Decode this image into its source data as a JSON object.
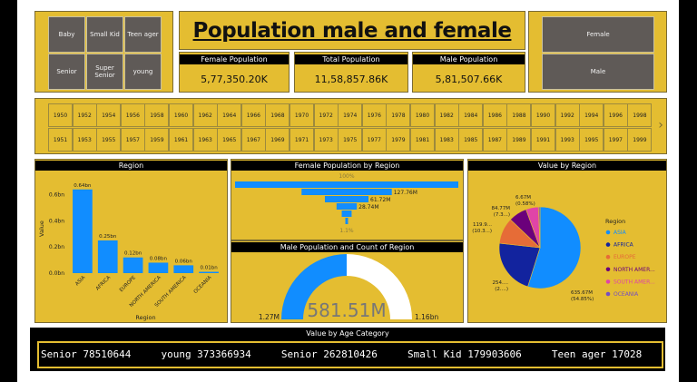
{
  "age_slicer": {
    "items": [
      "Baby",
      "Small Kid",
      "Teen ager",
      "Senior",
      "Super Senior",
      "young"
    ]
  },
  "title": "Population male and female",
  "kpis": [
    {
      "label": "Female Population",
      "value": "5,77,350.20K"
    },
    {
      "label": "Total Population",
      "value": "11,58,857.86K"
    },
    {
      "label": "Male Population",
      "value": "5,81,507.66K"
    }
  ],
  "gender_slicer": {
    "items": [
      "Female",
      "Male"
    ]
  },
  "years": {
    "row1": [
      "1950",
      "1952",
      "1954",
      "1956",
      "1958",
      "1960",
      "1962",
      "1964",
      "1966",
      "1968",
      "1970",
      "1972",
      "1974",
      "1976",
      "1978",
      "1980",
      "1982",
      "1984",
      "1986",
      "1988",
      "1990",
      "1992",
      "1994",
      "1996",
      "1998"
    ],
    "row2": [
      "1951",
      "1953",
      "1955",
      "1957",
      "1959",
      "1961",
      "1963",
      "1965",
      "1967",
      "1969",
      "1971",
      "1973",
      "1975",
      "1977",
      "1979",
      "1981",
      "1983",
      "1985",
      "1987",
      "1989",
      "1991",
      "1993",
      "1995",
      "1997",
      "1999"
    ],
    "next_arrow": "›"
  },
  "colors": {
    "panel": "#e4bd31",
    "bar": "#118dff",
    "slicer_button": "#5f5a57"
  },
  "chart_data": [
    {
      "type": "bar",
      "title": "Region",
      "xlabel": "Region",
      "ylabel": "Value",
      "categories": [
        "ASIA",
        "AFRICA",
        "EUROPE",
        "NORTH AMERICA",
        "SOUTH AMERICA",
        "OCEANIA"
      ],
      "values": [
        0.64,
        0.25,
        0.12,
        0.08,
        0.06,
        0.01
      ],
      "data_labels": [
        "0.64bn",
        "0.25bn",
        "0.12bn",
        "0.08bn",
        "0.06bn",
        "0.01bn"
      ],
      "y_ticks": [
        "0.0bn",
        "0.2bn",
        "0.4bn",
        "0.6bn"
      ],
      "y_tick_values": [
        0,
        0.2,
        0.4,
        0.6
      ],
      "ylim": [
        0,
        0.68
      ]
    },
    {
      "type": "funnel",
      "title": "Female Population by Region",
      "values": [
        316.0,
        127.76,
        61.72,
        28.74,
        14.0,
        3.4
      ],
      "data_labels": [
        "",
        "127.76M",
        "61.72M",
        "28.74M",
        "",
        ""
      ],
      "top_label": "100%",
      "bottom_label": "1.1%"
    },
    {
      "type": "gauge",
      "title": "Male Population and Count of Region",
      "value": 581.51,
      "value_label": "581.51M",
      "min_label": "1.27M",
      "max_label": "1.16bn",
      "fill_fraction": 0.5
    },
    {
      "type": "pie",
      "title": "Value by Region",
      "legend_title": "Region",
      "legend_position": "right",
      "slices": [
        {
          "name": "ASIA",
          "value": 635.67,
          "label": "635.67M (54.85%)",
          "color": "#118dff"
        },
        {
          "name": "AFRICA",
          "value": 254.0,
          "label": "254.... (2....)",
          "color": "#12239e"
        },
        {
          "name": "EUROPE",
          "value": 119.9,
          "label": "119.9... (10.3...)",
          "color": "#e66c37"
        },
        {
          "name": "NORTH AMER...",
          "value": 84.77,
          "label": "84.77M (7.3...)",
          "color": "#6b007b"
        },
        {
          "name": "SOUTH AMER...",
          "value": 58.0,
          "label": "",
          "color": "#e044a7"
        },
        {
          "name": "OCEANIA",
          "value": 6.67,
          "label": "6.67M (0.58%)",
          "color": "#744ec2"
        }
      ]
    }
  ],
  "ticker": {
    "title": "Value by Age Category",
    "text": "Senior 78510644     young 373366934     Senior 262810426     Small Kid 179903606     Teen ager 17028"
  }
}
